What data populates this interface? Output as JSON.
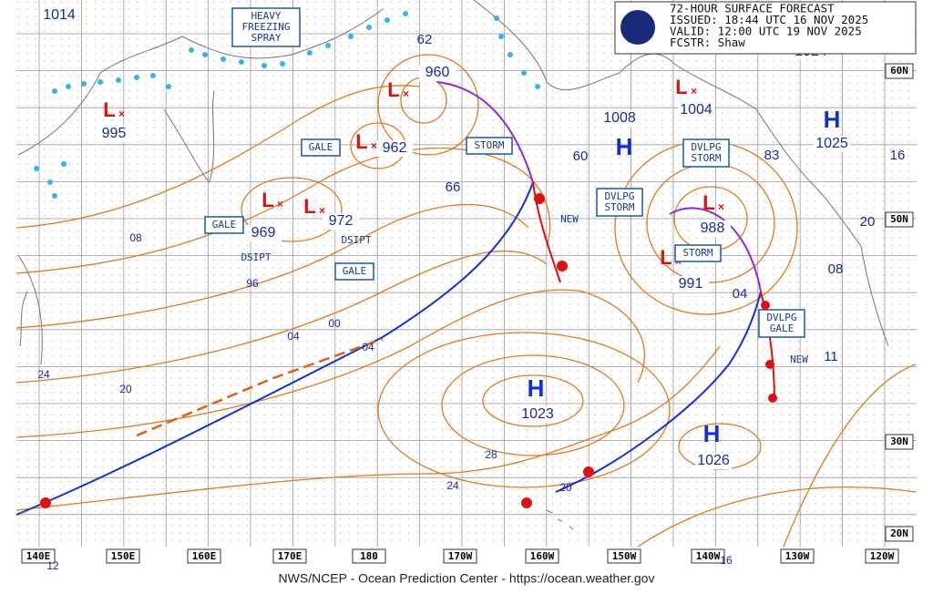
{
  "header": {
    "lines": [
      "72-HOUR SURFACE FORECAST",
      "ISSUED: 18:44 UTC 16 NOV 2025",
      "VALID:  12:00 UTC 19 NOV 2025",
      "FCSTR:  Shaw"
    ]
  },
  "footer": "NWS/NCEP - Ocean Prediction Center - https://ocean.weather.gov",
  "map": {
    "lon_labels": [
      "140E",
      "150E",
      "160E",
      "170E",
      "180",
      "170W",
      "160W",
      "150W",
      "140W",
      "130W",
      "120W"
    ],
    "lat_labels": [
      "60N",
      "50N",
      "30N",
      "20N"
    ],
    "pressure_centers": [
      {
        "value": "1014"
      },
      {
        "symbol": "L",
        "value": "995"
      },
      {
        "symbol": "L",
        "value": "960"
      },
      {
        "symbol": "L",
        "value": "962"
      },
      {
        "symbol": "L",
        "value": "969"
      },
      {
        "symbol": "L",
        "value": "972"
      },
      {
        "symbol": "H",
        "value": "1008"
      },
      {
        "symbol": "L",
        "value": "1004"
      },
      {
        "symbol": "H",
        "value": "1025"
      },
      {
        "symbol": "L",
        "value": "988"
      },
      {
        "symbol": "L",
        "value": "991"
      },
      {
        "symbol": "H",
        "value": "1023"
      },
      {
        "symbol": "H",
        "value": "1026"
      },
      {
        "value": "1024"
      }
    ],
    "isobar_labels": [
      "62",
      "66",
      "60",
      "83",
      "16",
      "20",
      "08",
      "08",
      "96",
      "04",
      "00",
      "04",
      "24",
      "20",
      "28",
      "24",
      "20",
      "04",
      "11",
      "12",
      "16"
    ],
    "warnings": [
      {
        "lines": [
          "HEAVY",
          "FREEZING",
          "SPRAY"
        ]
      },
      {
        "lines": [
          "GALE"
        ]
      },
      {
        "lines": [
          "STORM"
        ]
      },
      {
        "lines": [
          "DVLPG",
          "STORM"
        ]
      },
      {
        "lines": [
          "GALE"
        ]
      },
      {
        "lines": [
          "GALE"
        ]
      },
      {
        "lines": [
          "DVLPG",
          "STORM"
        ]
      },
      {
        "lines": [
          "STORM"
        ]
      },
      {
        "lines": [
          "DVLPG",
          "GALE"
        ]
      }
    ],
    "notes": [
      "DSIPT",
      "DSIPT",
      "NEW",
      "NEW"
    ]
  }
}
